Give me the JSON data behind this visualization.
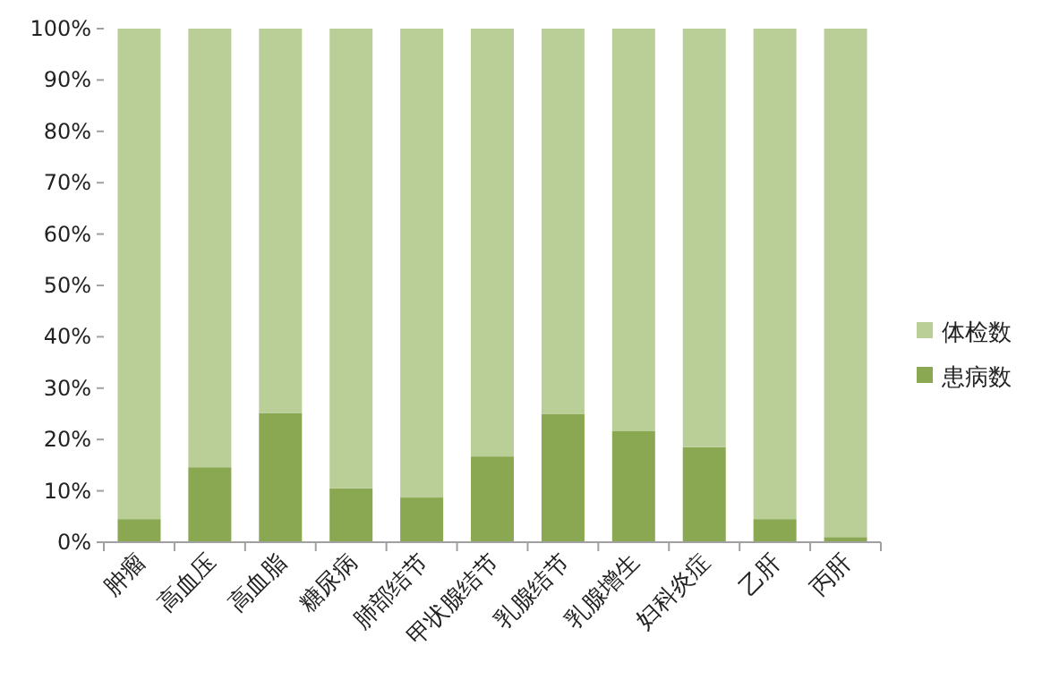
{
  "chart_data": {
    "type": "bar",
    "stacked": true,
    "legend": "right",
    "grid": false,
    "categories": [
      "肿瘤",
      "高血压",
      "高血脂",
      "糖尿病",
      "肺部结节",
      "甲状腺结节",
      "乳腺结节",
      "乳腺增生",
      "妇科炎症",
      "乙肝",
      "丙肝"
    ],
    "series": [
      {
        "name": "患病数",
        "color": "#8aa752",
        "values": [
          4.5,
          14.6,
          25.1,
          10.5,
          8.7,
          16.7,
          25,
          21.6,
          18.5,
          4.5,
          1
        ]
      },
      {
        "name": "体检数",
        "color": "#bacf98",
        "values": [
          95.5,
          85.4,
          74.9,
          89.5,
          91.3,
          83.3,
          75,
          78.4,
          81.5,
          95.5,
          99
        ]
      }
    ],
    "ylim": [
      0,
      100
    ],
    "yticks": [
      {
        "value": 0,
        "label": "0%"
      },
      {
        "value": 10,
        "label": "10%"
      },
      {
        "value": 20,
        "label": "20%"
      },
      {
        "value": 30,
        "label": "30%"
      },
      {
        "value": 40,
        "label": "40%"
      },
      {
        "value": 50,
        "label": "50%"
      },
      {
        "value": 60,
        "label": "60%"
      },
      {
        "value": 70,
        "label": "70%"
      },
      {
        "value": 80,
        "label": "80%"
      },
      {
        "value": 90,
        "label": "90%"
      },
      {
        "value": 100,
        "label": "100%"
      }
    ]
  }
}
